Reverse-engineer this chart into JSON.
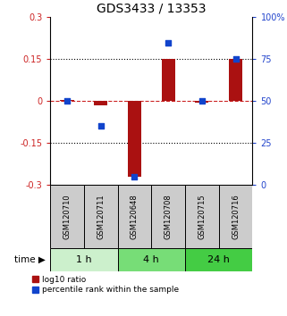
{
  "title": "GDS3433 / 13353",
  "samples": [
    "GSM120710",
    "GSM120711",
    "GSM120648",
    "GSM120708",
    "GSM120715",
    "GSM120716"
  ],
  "log10_ratio": [
    0.005,
    -0.015,
    -0.27,
    0.15,
    -0.005,
    0.15
  ],
  "percentile_rank": [
    50,
    35,
    5,
    85,
    50,
    75
  ],
  "ylim_left": [
    -0.3,
    0.3
  ],
  "ylim_right": [
    0,
    100
  ],
  "yticks_left": [
    -0.3,
    -0.15,
    0,
    0.15,
    0.3
  ],
  "yticks_right": [
    0,
    25,
    50,
    75,
    100
  ],
  "ytick_labels_right": [
    "0",
    "25",
    "50",
    "75",
    "100%"
  ],
  "bar_color": "#aa1111",
  "dot_color": "#1144cc",
  "bar_width": 0.4,
  "time_groups": [
    {
      "label": "1 h",
      "start": 0,
      "end": 2,
      "color": "#ccf0cc"
    },
    {
      "label": "4 h",
      "start": 2,
      "end": 4,
      "color": "#77dd77"
    },
    {
      "label": "24 h",
      "start": 4,
      "end": 6,
      "color": "#44cc44"
    }
  ],
  "legend_red": "log10 ratio",
  "legend_blue": "percentile rank within the sample",
  "sample_box_color": "#cccccc",
  "axis_color_left": "#cc2222",
  "axis_color_right": "#2244cc",
  "title_fontsize": 10,
  "tick_fontsize": 7,
  "sample_fontsize": 6,
  "time_fontsize": 8,
  "legend_fontsize": 6.5
}
